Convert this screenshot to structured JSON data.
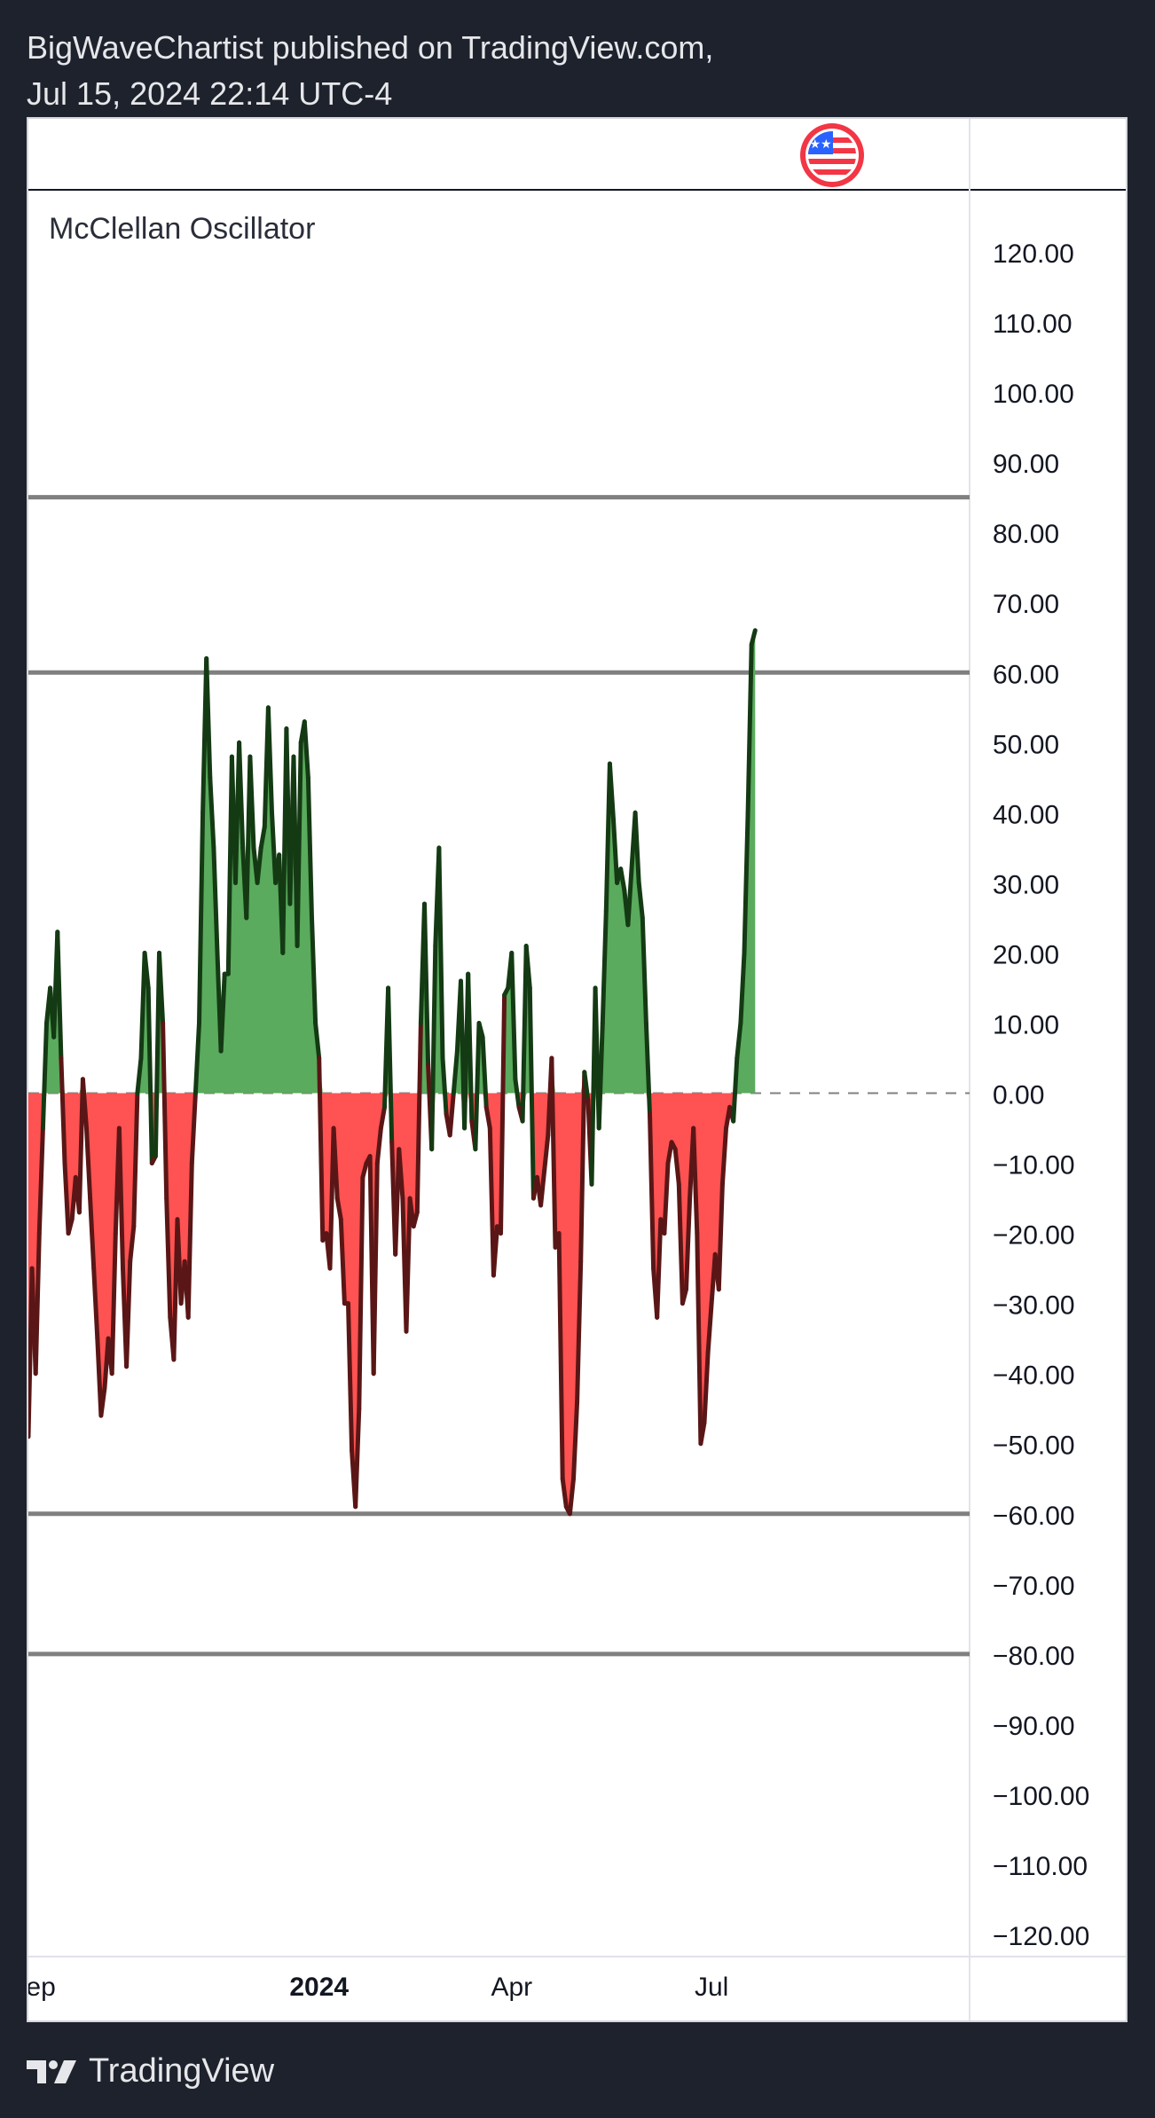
{
  "header": {
    "line1": "BigWaveChartist published on TradingView.com,",
    "line2": "Jul 15, 2024 22:14 UTC-4"
  },
  "footer": {
    "brand": "TradingView"
  },
  "icons": {
    "flag": "us-flag-icon",
    "logo": "tradingview-logo-icon"
  },
  "colors": {
    "positive_fill": "#5aab5d",
    "negative_fill": "#ff5252",
    "positive_line": "#143a14",
    "negative_line": "#5a1616",
    "level_line": "#808080",
    "zero_line": "#808080"
  },
  "chart_data": {
    "type": "area",
    "title": "McClellan Oscillator",
    "ylim": [
      -120,
      120
    ],
    "y_ticks": [
      "120.00",
      "110.00",
      "100.00",
      "90.00",
      "80.00",
      "70.00",
      "60.00",
      "50.00",
      "40.00",
      "30.00",
      "20.00",
      "10.00",
      "0.00",
      "−10.00",
      "−20.00",
      "−30.00",
      "−40.00",
      "−50.00",
      "−60.00",
      "−70.00",
      "−80.00",
      "−90.00",
      "−100.00",
      "−110.00",
      "−120.00"
    ],
    "x_ticks": [
      {
        "label": "Sep",
        "bold": false,
        "index": 1
      },
      {
        "label": "2024",
        "bold": true,
        "index": 80
      },
      {
        "label": "Apr",
        "bold": false,
        "index": 133
      },
      {
        "label": "Jul",
        "bold": false,
        "index": 188
      }
    ],
    "levels": [
      85,
      60,
      -60,
      -80
    ],
    "x_count": 260,
    "values": [
      -49,
      -25,
      -40,
      -20,
      -5,
      10,
      15,
      8,
      23,
      5,
      -10,
      -20,
      -18,
      -12,
      -17,
      2,
      -5,
      -15,
      -25,
      -35,
      -46,
      -42,
      -35,
      -40,
      -20,
      -5,
      -25,
      -39,
      -24,
      -19,
      0,
      5,
      20,
      15,
      -10,
      -9,
      20,
      10,
      -15,
      -32,
      -38,
      -18,
      -30,
      -24,
      -32,
      -10,
      0,
      10,
      40,
      62,
      45,
      35,
      20,
      6,
      17,
      17,
      48,
      30,
      50,
      35,
      25,
      48,
      35,
      30,
      35,
      38,
      55,
      40,
      30,
      34,
      20,
      52,
      27,
      48,
      21,
      50,
      53,
      45,
      25,
      10,
      5,
      -21,
      -20,
      -25,
      -5,
      -15,
      -18,
      -30,
      -30,
      -51,
      -59,
      -45,
      -12,
      -10,
      -9,
      -40,
      -10,
      -5,
      -2,
      15,
      -7,
      -23,
      -8,
      -15,
      -34,
      -15,
      -19,
      -17,
      10,
      27,
      4,
      -8,
      21,
      35,
      5,
      -3,
      -6,
      0,
      6,
      16,
      -5,
      17,
      -4,
      -8,
      10,
      8,
      -2,
      -5,
      -26,
      -19,
      -20,
      14,
      15,
      20,
      2,
      -2,
      -4,
      21,
      15,
      -15,
      -12,
      -16,
      -11,
      -6,
      5,
      -22,
      -20,
      -55,
      -59,
      -60,
      -55,
      -44,
      -24,
      3,
      -1,
      -13,
      15,
      -5,
      10,
      26,
      47,
      39,
      30,
      32,
      29,
      24,
      32,
      40,
      30,
      25,
      10,
      -3,
      -25,
      -32,
      -18,
      -20,
      -10,
      -7,
      -8,
      -13,
      -30,
      -28,
      -15,
      -5,
      -20,
      -50,
      -47,
      -37,
      -30,
      -23,
      -28,
      -13,
      -5,
      -2,
      -4,
      5,
      10,
      20,
      40,
      64,
      66
    ]
  }
}
